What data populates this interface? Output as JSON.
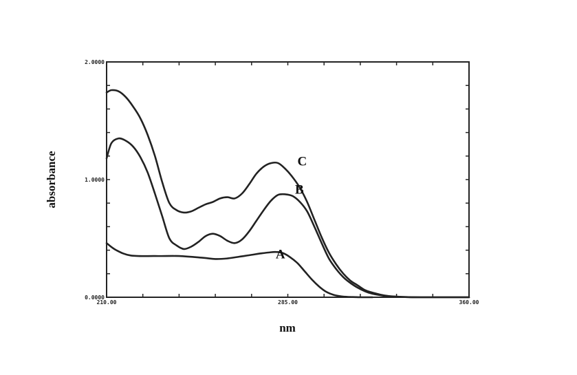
{
  "chart_data": {
    "type": "line",
    "title": "",
    "xlabel": "nm",
    "ylabel": "absorbance",
    "xlim": [
      210.0,
      360.0
    ],
    "ylim": [
      0.0,
      2.0
    ],
    "grid": false,
    "x_tick_labels": [
      "210.00",
      "285.00",
      "360.00"
    ],
    "y_tick_labels": [
      "0.0000",
      "1.0000",
      "2.0000"
    ],
    "series": [
      {
        "name": "A",
        "x": [
          210,
          214,
          220,
          230,
          240,
          250,
          255,
          260,
          265,
          270,
          273,
          277,
          280,
          283,
          286,
          289,
          292,
          295,
          298,
          301,
          304,
          307,
          310,
          313,
          316,
          320
        ],
        "y": [
          0.46,
          0.4,
          0.355,
          0.35,
          0.35,
          0.335,
          0.325,
          0.33,
          0.345,
          0.36,
          0.37,
          0.38,
          0.385,
          0.375,
          0.34,
          0.29,
          0.22,
          0.15,
          0.09,
          0.045,
          0.02,
          0.008,
          0.003,
          0.001,
          0.0,
          0.0
        ]
      },
      {
        "name": "B",
        "x": [
          210,
          212,
          215,
          218,
          221,
          224,
          227,
          230,
          233,
          236,
          239,
          242,
          245,
          248,
          251,
          254,
          257,
          260,
          263,
          266,
          269,
          272,
          275,
          278,
          281,
          284,
          287,
          290,
          293,
          296,
          299,
          302,
          305,
          308,
          311,
          314,
          317,
          320,
          325,
          330,
          335,
          340,
          345,
          350,
          355,
          360
        ],
        "y": [
          1.18,
          1.31,
          1.35,
          1.33,
          1.28,
          1.19,
          1.06,
          0.88,
          0.69,
          0.5,
          0.44,
          0.41,
          0.43,
          0.47,
          0.52,
          0.54,
          0.52,
          0.48,
          0.46,
          0.49,
          0.56,
          0.65,
          0.74,
          0.82,
          0.87,
          0.875,
          0.86,
          0.81,
          0.73,
          0.6,
          0.46,
          0.33,
          0.24,
          0.17,
          0.12,
          0.08,
          0.05,
          0.03,
          0.012,
          0.004,
          0.001,
          0.0,
          0.0,
          0.0,
          0.0,
          0.0
        ]
      },
      {
        "name": "C",
        "x": [
          210,
          212,
          215,
          218,
          221,
          224,
          227,
          230,
          233,
          236,
          239,
          242,
          245,
          248,
          251,
          254,
          257,
          260,
          263,
          266,
          269,
          272,
          275,
          278,
          281,
          284,
          287,
          290,
          293,
          296,
          299,
          302,
          305,
          308,
          311,
          314,
          317,
          320,
          325,
          330,
          335,
          340,
          345,
          350,
          355,
          360
        ],
        "y": [
          1.74,
          1.76,
          1.75,
          1.7,
          1.62,
          1.52,
          1.38,
          1.2,
          0.98,
          0.8,
          0.74,
          0.72,
          0.73,
          0.76,
          0.79,
          0.81,
          0.84,
          0.85,
          0.84,
          0.88,
          0.96,
          1.05,
          1.11,
          1.14,
          1.14,
          1.09,
          1.02,
          0.93,
          0.81,
          0.66,
          0.51,
          0.38,
          0.28,
          0.2,
          0.14,
          0.1,
          0.06,
          0.04,
          0.015,
          0.005,
          0.001,
          0.0,
          0.0,
          0.0,
          0.0,
          0.0
        ]
      }
    ],
    "curve_label_positions": {
      "A": [
        280,
        0.33
      ],
      "B": [
        288,
        0.88
      ],
      "C": [
        289,
        1.12
      ]
    }
  }
}
